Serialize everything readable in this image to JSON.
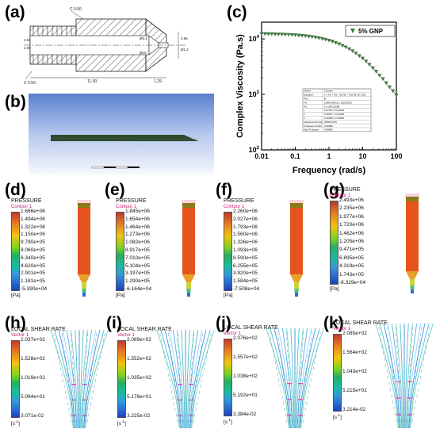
{
  "panels": {
    "a": {
      "label": "(a)",
      "dims": [
        "C 0.50",
        "C 0.50",
        "11.00",
        "1.29",
        "2.92",
        "4.00",
        "Ø5.4",
        "Ø10",
        "0.85",
        "Ø1.2"
      ]
    },
    "b": {
      "label": "(b)"
    },
    "c": {
      "label": "(c)"
    },
    "d": {
      "label": "(d)",
      "title": "PRESSURE",
      "sub": "Contour 1",
      "unit": "[Pa]",
      "ticks": [
        "1.666e+06",
        "1.494e+06",
        "1.322e+06",
        "1.150e+06",
        "9.780e+05",
        "8.060e+05",
        "6.340e+05",
        "4.620e+05",
        "2.901e+05",
        "1.181e+05",
        "-5.390e+04"
      ]
    },
    "e": {
      "label": "(e)",
      "title": "PRESSURE",
      "sub": "Contour 1",
      "unit": "[Pa]",
      "ticks": [
        "1.845e+06",
        "1.654e+06",
        "1.464e+06",
        "1.273e+06",
        "1.082e+06",
        "8.917e+05",
        "7.010e+05",
        "5.104e+05",
        "3.197e+05",
        "1.290e+05",
        "-6.164e+04"
      ]
    },
    "f": {
      "label": "(f)",
      "title": "PRESSURE",
      "sub": "Contour 1",
      "unit": "[Pa]",
      "ticks": [
        "2.260e+06",
        "2.027e+06",
        "1.793e+06",
        "1.560e+06",
        "1.326e+06",
        "1.093e+06",
        "8.590e+05",
        "6.255e+05",
        "3.920e+05",
        "1.584e+05",
        "-7.508e+04"
      ]
    },
    "g": {
      "label": "(g)",
      "title": "PRESSURE",
      "sub": "Contour 1",
      "unit": "[Pa]",
      "ticks": [
        "2.493e+06",
        "2.235e+06",
        "1.977e+06",
        "1.720e+06",
        "1.462e+06",
        "1.205e+06",
        "9.471e+05",
        "6.895e+05",
        "4.319e+05",
        "1.743e+05",
        "-8.329e+04"
      ]
    },
    "h": {
      "label": "(h)",
      "title": "LOCAL SHEAR RATE",
      "sub": "Vector 1",
      "unit": "[s^-1]",
      "ticks": [
        "2.037e+02",
        "1.528e+02",
        "1.019e+02",
        "5.094e+01",
        "3.071e-02"
      ]
    },
    "i": {
      "label": "(i)",
      "title": "LOCAL SHEAR RATE",
      "sub": "Vector 1",
      "unit": "[s^-1]",
      "ticks": [
        "2.069e+02",
        "1.552e+02",
        "1.035e+02",
        "5.176e+01",
        "3.225e-02"
      ]
    },
    "j": {
      "label": "(j)",
      "title": "LOCAL SHEAR RATE",
      "sub": "Vector 1",
      "unit": "[s^-1]",
      "ticks": [
        "2.076e+02",
        "1.557e+02",
        "1.038e+02",
        "5.192e+01",
        "3.384e-02"
      ]
    },
    "k": {
      "label": "(k)",
      "title": "LOCAL SHEAR RATE",
      "sub": "Vector 1",
      "unit": "[s^-1]",
      "ticks": [
        "2.085e+02",
        "1.564e+02",
        "1.043e+02",
        "5.215e+01",
        "3.214e-02"
      ]
    }
  },
  "chart_data": {
    "type": "scatter",
    "xlabel": "Frequency (rad/s)",
    "ylabel": "Complex Viscosity (Pa.s)",
    "x_scale": "log",
    "y_scale": "log",
    "xlim": [
      0.01,
      100
    ],
    "ylim": [
      100,
      20000
    ],
    "x_ticks": [
      "0.01",
      "0.1",
      "1",
      "10",
      "100"
    ],
    "y_ticks": [
      "10^4",
      "10^3",
      "10^2"
    ],
    "legend": {
      "position": "top-right",
      "entries": [
        "5% GNP"
      ]
    },
    "series": [
      {
        "name": "5% GNP",
        "color": "#3d7a3d",
        "x": [
          0.01,
          0.0126,
          0.0158,
          0.02,
          0.0251,
          0.0316,
          0.0398,
          0.0501,
          0.0631,
          0.0794,
          0.1,
          0.126,
          0.158,
          0.2,
          0.251,
          0.316,
          0.398,
          0.501,
          0.631,
          0.794,
          1,
          1.26,
          1.58,
          2,
          2.51,
          3.16,
          3.98,
          5.01,
          6.31,
          7.94,
          10,
          12.6,
          15.8,
          20,
          25.1,
          31.6,
          39.8,
          50.1,
          63.1,
          79.4,
          100
        ],
        "y": [
          12400,
          12350,
          12300,
          12250,
          12200,
          12150,
          12100,
          12000,
          11950,
          11850,
          11750,
          11600,
          11450,
          11300,
          11100,
          10900,
          10650,
          10400,
          10100,
          9750,
          9400,
          9000,
          8550,
          8100,
          7600,
          7100,
          6600,
          6050,
          5500,
          4950,
          4450,
          3950,
          3450,
          3000,
          2600,
          2200,
          1900,
          1600,
          1350,
          1150,
          970
        ]
      }
    ],
    "fit_table": {
      "rows": [
        [
          "Model",
          "Carreau"
        ],
        [
          "Equation",
          "y = A2 + (A1 - A2)*[1 + (t*x)^2]^((n-1)/2)"
        ],
        [
          "Plot",
          "B"
        ],
        [
          "A1",
          "12803.66411 ± 150.92125"
        ],
        [
          "A2",
          "0 ± 268.15285"
        ],
        [
          "t",
          "0.47101 ± 0.23433"
        ],
        [
          "n",
          "0.50227 ± 0.03365"
        ],
        [
          "x",
          "0.39035 ± 0.16805"
        ],
        [
          "Reduced Chi-Sqr",
          "2858.51275"
        ],
        [
          "R-Square (COD)",
          "0.99984"
        ],
        [
          "Adj. R-Square",
          "0.99981"
        ]
      ]
    }
  }
}
